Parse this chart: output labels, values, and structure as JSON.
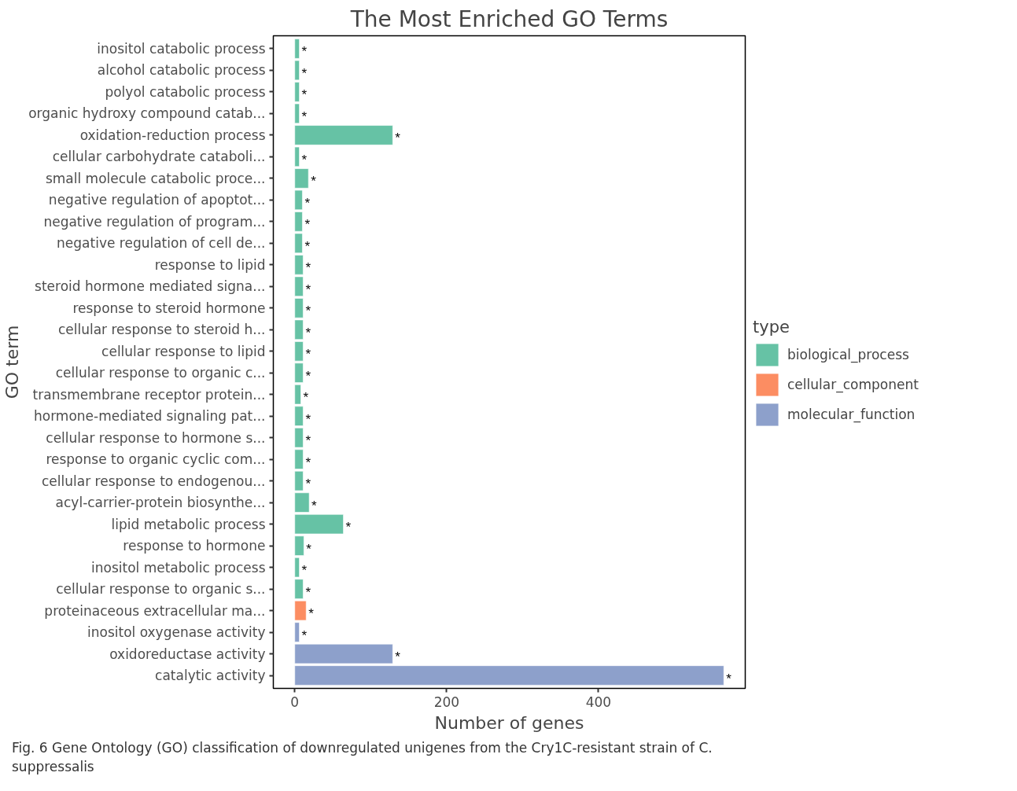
{
  "chart_data": {
    "type": "bar",
    "orientation": "horizontal",
    "title": "The Most Enriched GO Terms",
    "xlabel": "Number of genes",
    "ylabel": "GO term",
    "legend_title": "type",
    "legend": "right",
    "grid": false,
    "categories": [
      "inositol catabolic process",
      "alcohol catabolic process",
      "polyol catabolic process",
      "organic hydroxy compound catab...",
      "oxidation-reduction process",
      "cellular carbohydrate cataboli...",
      "small molecule catabolic proce...",
      "negative regulation of apoptot...",
      "negative regulation of program...",
      "negative regulation of cell de...",
      "response to lipid",
      "steroid hormone mediated signa...",
      "response to steroid hormone",
      "cellular response to steroid h...",
      "cellular response to lipid",
      "cellular response to organic c...",
      "transmembrane receptor protein...",
      "hormone-mediated signaling pat...",
      "cellular response to hormone s...",
      "response to organic cyclic com...",
      "cellular response to endogenou...",
      "acyl-carrier-protein biosynthe...",
      "lipid metabolic process",
      "response to hormone",
      "inositol metabolic process",
      "cellular response to organic s...",
      "proteinaceous extracellular ma...",
      "inositol oxygenase activity",
      "oxidoreductase activity",
      "catalytic activity"
    ],
    "series": [
      {
        "name": "biological_process",
        "color": "#66c2a5",
        "values": [
          6,
          6,
          6,
          6,
          129,
          6,
          18,
          10,
          10,
          10,
          11,
          11,
          11,
          11,
          11,
          11,
          8,
          11,
          11,
          11,
          11,
          19,
          64,
          12,
          6,
          11,
          null,
          null,
          null,
          null
        ],
        "value_labels": [
          "*",
          "*",
          "*",
          "*",
          "*",
          "*",
          "*",
          "*",
          "*",
          "*",
          "*",
          "*",
          "*",
          "*",
          "*",
          "*",
          "*",
          "*",
          "*",
          "*",
          "*",
          "*",
          "*",
          "*",
          "*",
          "*",
          null,
          null,
          null,
          null
        ]
      },
      {
        "name": "cellular_component",
        "color": "#fc8d62",
        "values": [
          null,
          null,
          null,
          null,
          null,
          null,
          null,
          null,
          null,
          null,
          null,
          null,
          null,
          null,
          null,
          null,
          null,
          null,
          null,
          null,
          null,
          null,
          null,
          null,
          null,
          null,
          15,
          null,
          null,
          null
        ],
        "value_labels": [
          null,
          null,
          null,
          null,
          null,
          null,
          null,
          null,
          null,
          null,
          null,
          null,
          null,
          null,
          null,
          null,
          null,
          null,
          null,
          null,
          null,
          null,
          null,
          null,
          null,
          null,
          "*",
          null,
          null,
          null
        ]
      },
      {
        "name": "molecular_function",
        "color": "#8da0cb",
        "values": [
          null,
          null,
          null,
          null,
          null,
          null,
          null,
          null,
          null,
          null,
          null,
          null,
          null,
          null,
          null,
          null,
          null,
          null,
          null,
          null,
          null,
          null,
          null,
          null,
          null,
          null,
          null,
          6,
          129,
          565
        ],
        "value_labels": [
          null,
          null,
          null,
          null,
          null,
          null,
          null,
          null,
          null,
          null,
          null,
          null,
          null,
          null,
          null,
          null,
          null,
          null,
          null,
          null,
          null,
          null,
          null,
          null,
          null,
          null,
          null,
          "*",
          "*",
          "*"
        ]
      }
    ],
    "xlim": [
      -28.25,
      593.25
    ],
    "xticks": [
      0,
      200,
      400
    ],
    "annotations": [
      "Fig. 6 Gene Ontology (GO) classification of downregulated unigenes from the Cry1C-resistant strain of C. suppressalis"
    ]
  }
}
